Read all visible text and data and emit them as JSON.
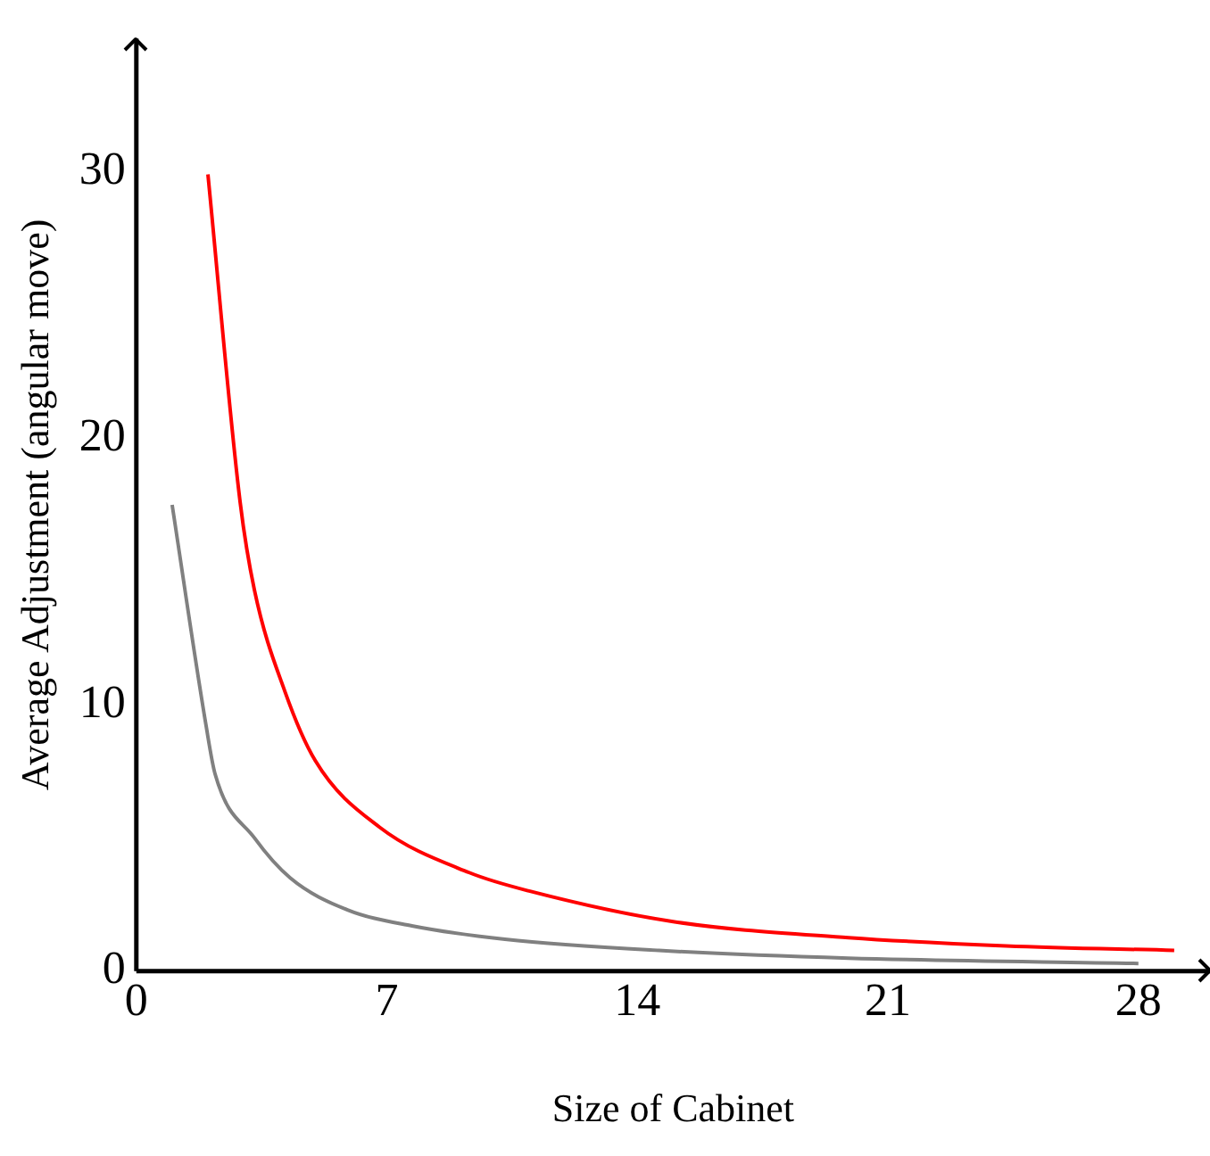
{
  "chart_data": {
    "type": "line",
    "xlabel": "Size of Cabinet",
    "ylabel": "Average Adjustment (angular move)",
    "xlim": [
      0,
      30
    ],
    "ylim": [
      0,
      35
    ],
    "xticks": [
      0,
      7,
      14,
      21,
      28
    ],
    "yticks": [
      0,
      10,
      20,
      30
    ],
    "grid": false,
    "legend": false,
    "marker": "none",
    "line_style": "solid",
    "series": [
      {
        "color": "#ff0000",
        "x": [
          2,
          2.9,
          3.3,
          4.15,
          5,
          6.8,
          9.3,
          11,
          15,
          19.9,
          24.3,
          29
        ],
        "values": [
          29.9,
          17.6,
          14.3,
          10.5,
          7.9,
          5.4,
          3.7,
          3,
          1.86,
          1.26,
          0.95,
          0.78
        ]
      },
      {
        "color": "#808080",
        "x": [
          1,
          1.95,
          2.2,
          3.3,
          4.3,
          5.9,
          7.7,
          10.3,
          14.6,
          19.9,
          28
        ],
        "values": [
          17.5,
          9.2,
          7.4,
          5,
          3.5,
          2.3,
          1.7,
          1.2,
          0.78,
          0.49,
          0.29
        ]
      }
    ]
  }
}
